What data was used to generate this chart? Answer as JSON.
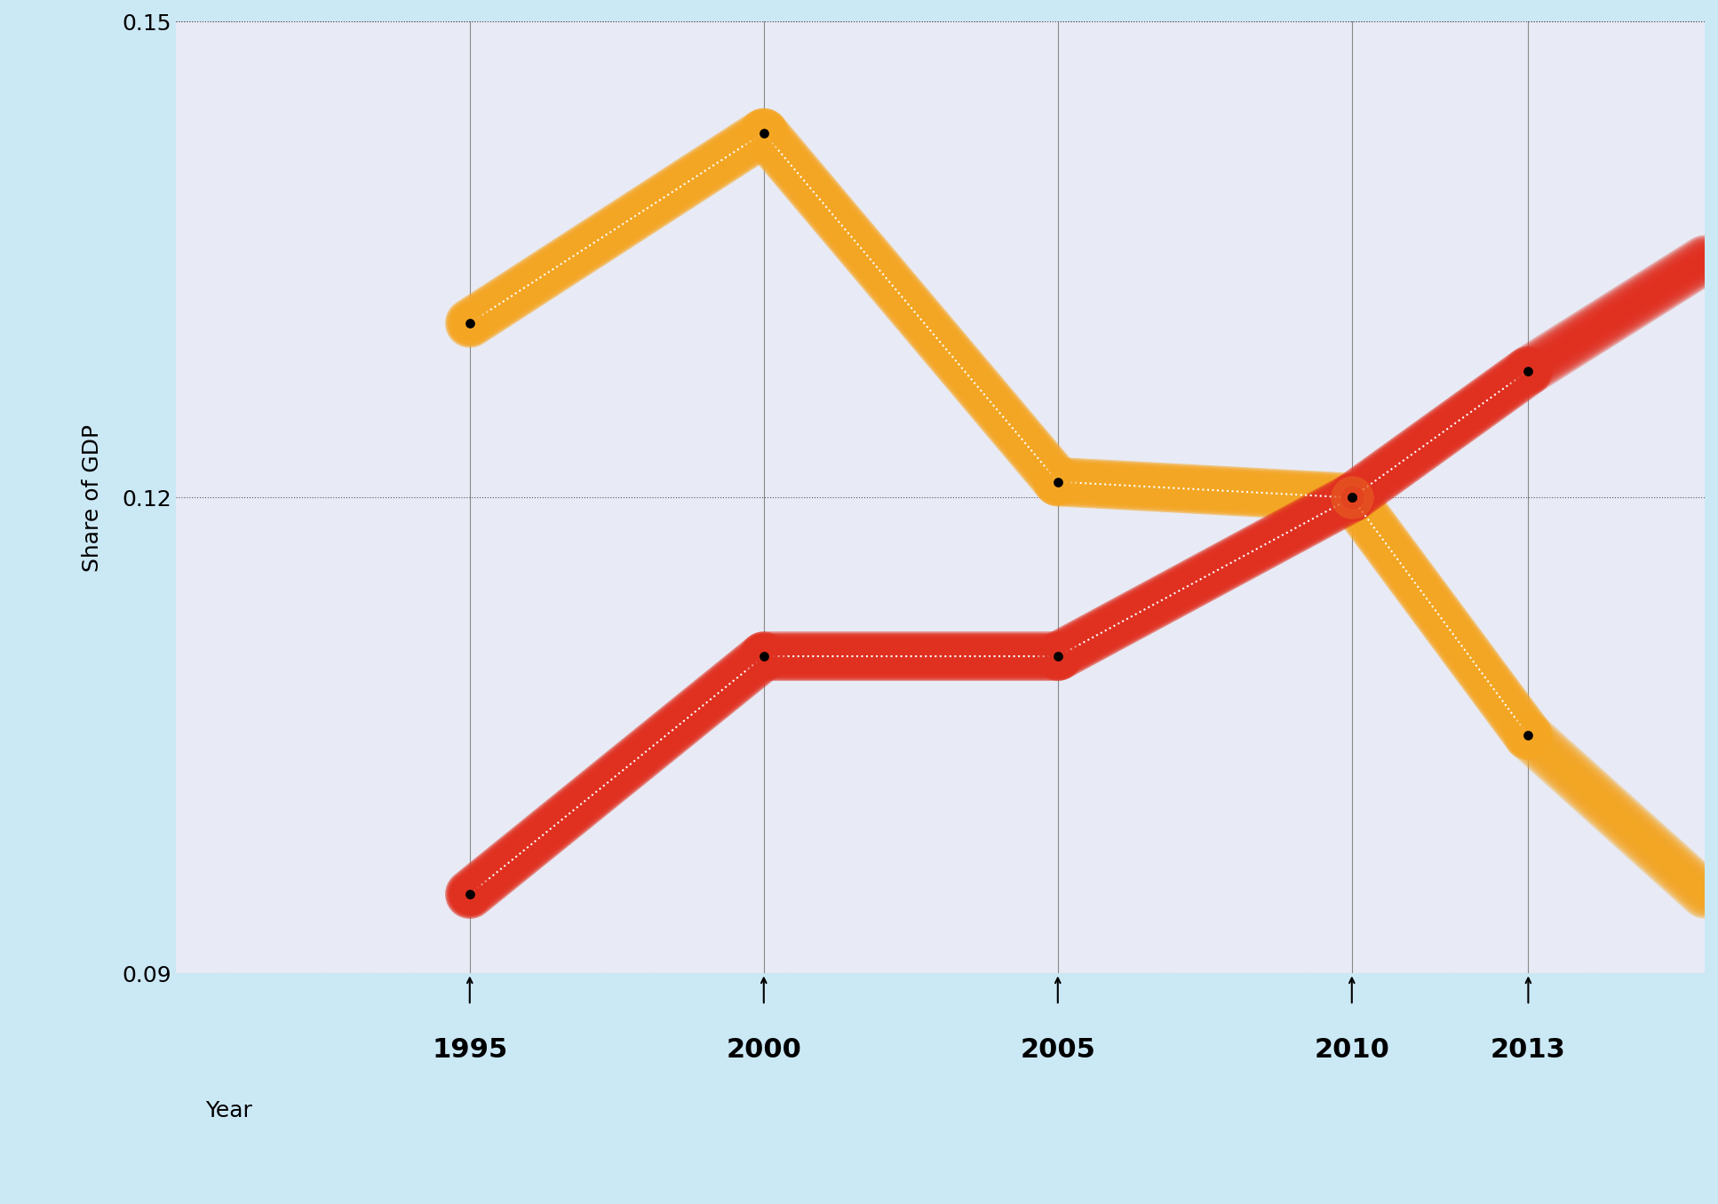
{
  "years": [
    1995,
    2000,
    2005,
    2010,
    2013
  ],
  "orange_line": [
    0.131,
    0.143,
    0.121,
    0.12,
    0.105
  ],
  "red_line": [
    0.095,
    0.11,
    0.11,
    0.12,
    0.128
  ],
  "orange_color": "#F5A623",
  "red_color": "#E03020",
  "background_plot": "#E8EBF5",
  "background_outer": "#CBE8F5",
  "ylabel": "Share of GDP",
  "xlabel": "Year",
  "ylim": [
    0.09,
    0.15
  ],
  "yticks": [
    0.09,
    0.12,
    0.15
  ],
  "title": "",
  "line_width": 22,
  "marker_size": 22,
  "dot_size": 8
}
